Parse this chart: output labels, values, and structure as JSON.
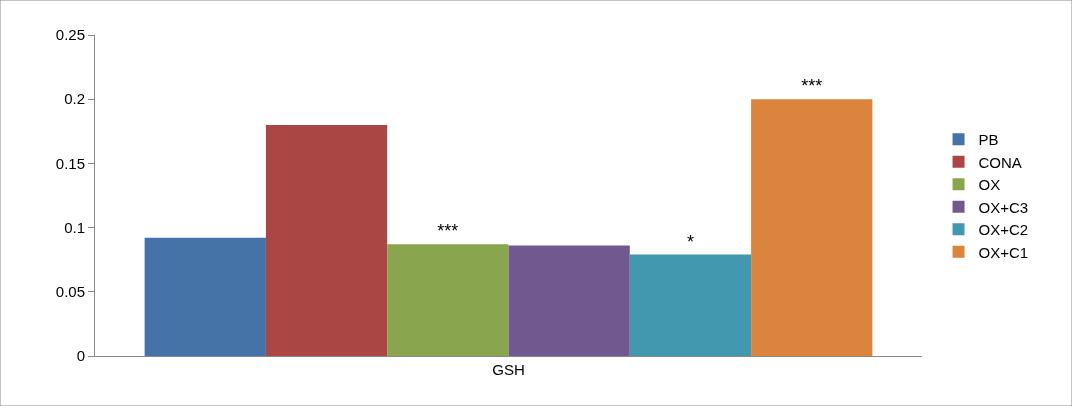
{
  "chart_data": {
    "type": "bar",
    "categories": [
      "GSH"
    ],
    "series": [
      {
        "name": "PB",
        "color": "#4572a7",
        "values": [
          0.092
        ]
      },
      {
        "name": "CONA",
        "color": "#aa4643",
        "values": [
          0.18
        ]
      },
      {
        "name": "OX",
        "color": "#89a54e",
        "values": [
          0.087
        ],
        "value_labels": [
          "***"
        ]
      },
      {
        "name": "OX+C3",
        "color": "#71588f",
        "values": [
          0.086
        ]
      },
      {
        "name": "OX+C2",
        "color": "#4198af",
        "values": [
          0.079
        ],
        "value_labels": [
          "*"
        ]
      },
      {
        "name": "OX+C1",
        "color": "#db843d",
        "values": [
          0.2
        ],
        "value_labels": [
          "***"
        ]
      }
    ],
    "ylim": [
      0,
      0.25
    ],
    "yticks": [
      0,
      0.05,
      0.1,
      0.15,
      0.2,
      0.25
    ],
    "grid": false,
    "legend": "right"
  }
}
